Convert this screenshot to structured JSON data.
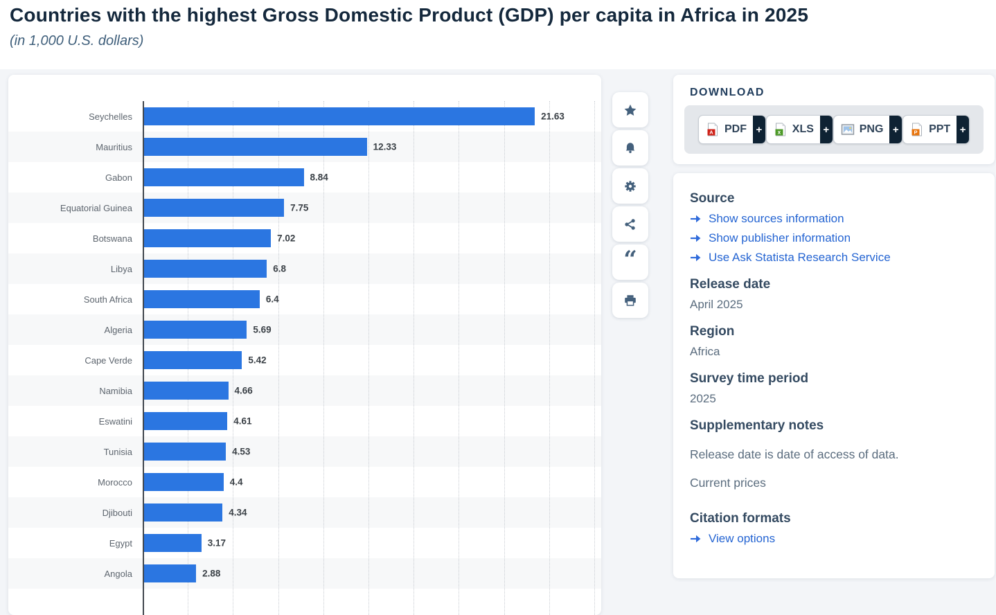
{
  "page": {
    "title": "Countries with the highest Gross Domestic Product (GDP) per capita in Africa in 2025",
    "subtitle": "(in 1,000 U.S. dollars)"
  },
  "chart_data": {
    "type": "bar",
    "orientation": "horizontal",
    "title": "Countries with the highest Gross Domestic Product (GDP) per capita in Africa in 2025",
    "unit_label": "(in 1,000 U.S. dollars)",
    "categories": [
      "Seychelles",
      "Mauritius",
      "Gabon",
      "Equatorial Guinea",
      "Botswana",
      "Libya",
      "South Africa",
      "Algeria",
      "Cape Verde",
      "Namibia",
      "Eswatini",
      "Tunisia",
      "Morocco",
      "Djibouti",
      "Egypt",
      "Angola"
    ],
    "values": [
      21.63,
      12.33,
      8.84,
      7.75,
      7.02,
      6.8,
      6.4,
      5.69,
      5.42,
      4.66,
      4.61,
      4.53,
      4.4,
      4.34,
      3.17,
      2.88
    ],
    "value_labels": [
      "21.63",
      "12.33",
      "8.84",
      "7.75",
      "7.02",
      "6.8",
      "6.4",
      "5.69",
      "5.42",
      "4.66",
      "4.61",
      "4.53",
      "4.4",
      "4.34",
      "3.17",
      "2.88"
    ],
    "xlabel": "",
    "ylabel": "",
    "xlim": [
      0,
      25
    ],
    "gridline_step": 2.5,
    "grid": "dotted-vertical",
    "legend": "none",
    "bar_color": "#2b76e1",
    "stripe_color": "#f7f8f9"
  },
  "toolbar": {
    "buttons": [
      "favorite-star",
      "notifications-bell",
      "settings-gear",
      "share",
      "cite-quote",
      "print"
    ]
  },
  "download": {
    "heading": "DOWNLOAD",
    "plus_label": "+",
    "buttons": [
      {
        "label": "PDF",
        "icon": "pdf-file-icon"
      },
      {
        "label": "XLS",
        "icon": "xls-file-icon"
      },
      {
        "label": "PNG",
        "icon": "png-file-icon"
      },
      {
        "label": "PPT",
        "icon": "ppt-file-icon"
      }
    ]
  },
  "details": {
    "source": {
      "heading": "Source",
      "links": [
        "Show sources information",
        "Show publisher information",
        "Use Ask Statista Research Service"
      ]
    },
    "release_date": {
      "heading": "Release date",
      "value": "April 2025"
    },
    "region": {
      "heading": "Region",
      "value": "Africa"
    },
    "survey_time_period": {
      "heading": "Survey time period",
      "value": "2025"
    },
    "supplementary_notes": {
      "heading": "Supplementary notes",
      "paragraphs": [
        "Release date is date of access of data.",
        "Current prices"
      ]
    },
    "citation_formats": {
      "heading": "Citation formats",
      "link": "View options"
    }
  },
  "colors": {
    "bar_blue": "#2b76e1",
    "link_blue": "#2464d2",
    "arrow_blue": "#2f6bdb",
    "heading_navy": "#344a61",
    "title_navy": "#14283c",
    "plus_block_dark": "#0e2233",
    "toolbar_icon": "#44607c"
  }
}
